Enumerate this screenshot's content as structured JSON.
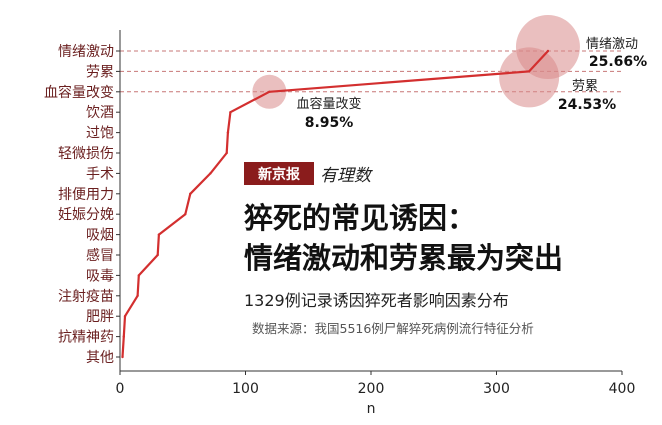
{
  "chart_data": {
    "type": "line",
    "x_label": "n",
    "xlim": [
      0,
      400
    ],
    "x_ticks": [
      "0",
      "100",
      "200",
      "300",
      "400"
    ],
    "categories": [
      "情绪激动",
      "劳累",
      "血容量改变",
      "饮酒",
      "过饱",
      "轻微损伤",
      "手术",
      "排便用力",
      "妊娠分娩",
      "吸烟",
      "感冒",
      "吸毒",
      "注射疫苗",
      "肥胖",
      "抗精神药",
      "其他"
    ],
    "series": [
      {
        "values": [
          341,
          326,
          119,
          88,
          86,
          85,
          72,
          56,
          52,
          31,
          30,
          15,
          14,
          4,
          3,
          2
        ]
      }
    ],
    "annotations": [
      {
        "category": "情绪激动",
        "name": "情绪激动",
        "value": "25.66%"
      },
      {
        "category": "劳累",
        "name": "劳累",
        "value": "24.53%"
      },
      {
        "category": "血容量改变",
        "name": "血容量改变",
        "value": "8.95%"
      }
    ],
    "colors": {
      "line": "#d32f2f",
      "bubble": "#d98a8a",
      "axis_text": "#6a1f1f",
      "ref_line": "#c77777"
    }
  },
  "logo": {
    "brand": "新京报",
    "column": "有理数"
  },
  "headline": {
    "line1": "猝死的常见诱因：",
    "line2": "情绪激动和劳累最为突出"
  },
  "subtitle": "1329例记录诱因猝死者影响因素分布",
  "source": "数据来源：我国5516例尸解猝死病例流行特征分析"
}
